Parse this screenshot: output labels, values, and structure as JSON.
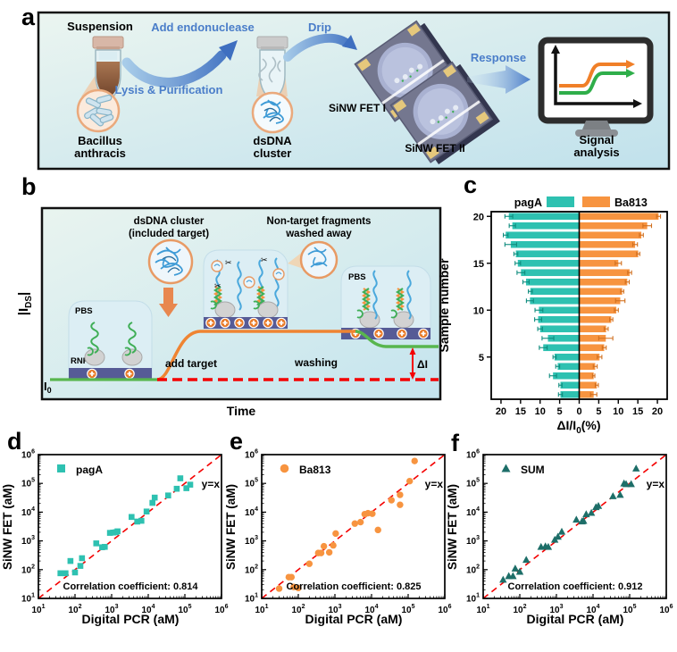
{
  "figure": {
    "panel_labels": {
      "a": "a",
      "b": "b",
      "c": "c",
      "d": "d",
      "e": "e",
      "f": "f"
    }
  },
  "colors": {
    "teal": "#2ec1b1",
    "orange": "#f79440",
    "dark_teal": "#1d6e68",
    "red": "#f40000",
    "blue_text": "#4a7dc9"
  },
  "panel_a": {
    "suspension": "Suspension",
    "add_endonuclease": "Add endonuclease",
    "lysis": "Lysis & Purification",
    "drip": "Drip",
    "bacillus1": "Bacillus",
    "bacillus2": "anthracis",
    "dsdna1": "dsDNA",
    "dsdna2": "cluster",
    "fet1": "SiNW FET I",
    "fet2": "SiNW FET II",
    "response": "Response",
    "signal1": "Signal",
    "signal2": "analysis"
  },
  "panel_b": {
    "ylabel_pre": "|I",
    "ylabel_sub": "DS",
    "ylabel_post": "|",
    "xlabel": "Time",
    "cluster1": "dsDNA cluster",
    "cluster2": "(included target)",
    "nontarget1": "Non-target fragments",
    "nontarget2": "washed away",
    "pbs_left": "PBS",
    "rnp": "RNP",
    "pbs_right": "PBS",
    "add_target": "add target",
    "washing": "washing",
    "i0_main": "I",
    "i0_sub": "0",
    "delta": "ΔI"
  },
  "chart_data": [
    {
      "id": "c",
      "type": "bar",
      "orientation": "diverging-horizontal",
      "ylabel": "Sample number",
      "xlabel_parts": {
        "pre": "ΔI/I",
        "sub": "0",
        "post": "(%)"
      },
      "xtick_values": [
        -20,
        -15,
        -10,
        -5,
        0,
        5,
        10,
        15,
        20
      ],
      "xmax": 22.5,
      "yticks": [
        5,
        10,
        15,
        20
      ],
      "samples": [
        1,
        2,
        3,
        4,
        5,
        6,
        7,
        8,
        9,
        10,
        11,
        12,
        13,
        14,
        15,
        16,
        17,
        18,
        19,
        20
      ],
      "series": [
        {
          "name": "pagA",
          "side": "left",
          "color": "#2ec1b1",
          "error_color": "#0f8c7e",
          "values": [
            4.8,
            4.8,
            6.7,
            5.5,
            6.3,
            9.2,
            8.0,
            10.0,
            10.5,
            10.3,
            12.6,
            12.5,
            13.6,
            14.9,
            15.7,
            16.2,
            17.5,
            18.8,
            17.1,
            18.0
          ],
          "errors": [
            0.5,
            0.4,
            0.9,
            0.5,
            0.4,
            1.0,
            1.5,
            0.6,
            0.9,
            1.0,
            0.9,
            0.5,
            0.8,
            1.0,
            0.7,
            0.5,
            1.5,
            0.6,
            0.8,
            1.0
          ]
        },
        {
          "name": "Ba813",
          "side": "right",
          "color": "#f79440",
          "error_color": "#d06f1e",
          "values": [
            3.7,
            4.5,
            3.7,
            4.1,
            5.2,
            6.4,
            6.8,
            6.9,
            8.2,
            9.5,
            10.5,
            11.0,
            12.3,
            12.9,
            10.0,
            15.1,
            14.3,
            15.9,
            17.4,
            20.3
          ],
          "errors": [
            0.8,
            0.4,
            0.3,
            0.5,
            0.6,
            0.5,
            1.8,
            0.5,
            0.4,
            0.5,
            1.2,
            0.4,
            0.5,
            0.5,
            0.8,
            0.4,
            0.6,
            0.5,
            1.1,
            0.5
          ]
        }
      ],
      "legend_position": "top"
    },
    {
      "id": "d",
      "type": "scatter",
      "legend_label": "pagA",
      "marker": "square",
      "color": "#2ec1b1",
      "xlabel": "Digital PCR (aM)",
      "ylabel": "SiNW FET (aM)",
      "xscale": "log",
      "yscale": "log",
      "xlim": [
        10,
        1000000
      ],
      "ylim": [
        10,
        1000000
      ],
      "ref_label": "y=x",
      "annotation": "Correlation coefficient: 0.814",
      "points": [
        [
          40,
          75
        ],
        [
          55,
          75
        ],
        [
          75,
          200
        ],
        [
          100,
          80
        ],
        [
          140,
          135
        ],
        [
          155,
          250
        ],
        [
          380,
          820
        ],
        [
          550,
          600
        ],
        [
          650,
          620
        ],
        [
          900,
          1900
        ],
        [
          1100,
          1950
        ],
        [
          1300,
          2000
        ],
        [
          1450,
          2150
        ],
        [
          3500,
          6800
        ],
        [
          5000,
          4700
        ],
        [
          6500,
          5000
        ],
        [
          9000,
          10500
        ],
        [
          13000,
          21000
        ],
        [
          15000,
          32000
        ],
        [
          35000,
          38000
        ],
        [
          60000,
          65000
        ],
        [
          75000,
          150000
        ],
        [
          110000,
          68000
        ],
        [
          140000,
          90000
        ]
      ]
    },
    {
      "id": "e",
      "type": "scatter",
      "legend_label": "Ba813",
      "marker": "circle",
      "color": "#f79440",
      "xlabel": "Digital PCR (aM)",
      "ylabel": "SiNW FET (aM)",
      "xscale": "log",
      "yscale": "log",
      "xlim": [
        10,
        1000000
      ],
      "ylim": [
        10,
        1000000
      ],
      "ref_label": "y=x",
      "annotation": "Correlation coefficient: 0.825",
      "points": [
        [
          30,
          22
        ],
        [
          55,
          55
        ],
        [
          65,
          55
        ],
        [
          75,
          25
        ],
        [
          100,
          23
        ],
        [
          200,
          160
        ],
        [
          350,
          380
        ],
        [
          420,
          380
        ],
        [
          500,
          650
        ],
        [
          700,
          400
        ],
        [
          900,
          700
        ],
        [
          1050,
          1800
        ],
        [
          3500,
          4000
        ],
        [
          5000,
          4500
        ],
        [
          6500,
          8500
        ],
        [
          8000,
          9200
        ],
        [
          10500,
          8800
        ],
        [
          15000,
          2400
        ],
        [
          35000,
          26000
        ],
        [
          60000,
          40000
        ],
        [
          60000,
          18000
        ],
        [
          110000,
          120000
        ],
        [
          150000,
          600000
        ]
      ]
    },
    {
      "id": "f",
      "type": "scatter",
      "legend_label": "SUM",
      "marker": "triangle",
      "color": "#1d6e68",
      "xlabel": "Digital PCR (aM)",
      "ylabel": "SiNW FET (aM)",
      "xscale": "log",
      "yscale": "log",
      "xlim": [
        10,
        1000000
      ],
      "ylim": [
        10,
        1000000
      ],
      "ref_label": "y=x",
      "annotation": "Correlation coefficient: 0.912",
      "points": [
        [
          35,
          45
        ],
        [
          50,
          60
        ],
        [
          65,
          60
        ],
        [
          75,
          110
        ],
        [
          100,
          85
        ],
        [
          150,
          220
        ],
        [
          380,
          620
        ],
        [
          500,
          650
        ],
        [
          600,
          620
        ],
        [
          900,
          1100
        ],
        [
          1100,
          1400
        ],
        [
          1400,
          2100
        ],
        [
          3500,
          5500
        ],
        [
          5000,
          4800
        ],
        [
          5500,
          5000
        ],
        [
          6500,
          8500
        ],
        [
          9000,
          9500
        ],
        [
          12000,
          15000
        ],
        [
          14000,
          16500
        ],
        [
          35000,
          36000
        ],
        [
          55000,
          40000
        ],
        [
          70000,
          100000
        ],
        [
          80000,
          95000
        ],
        [
          110000,
          95000
        ],
        [
          150000,
          330000
        ]
      ]
    }
  ]
}
